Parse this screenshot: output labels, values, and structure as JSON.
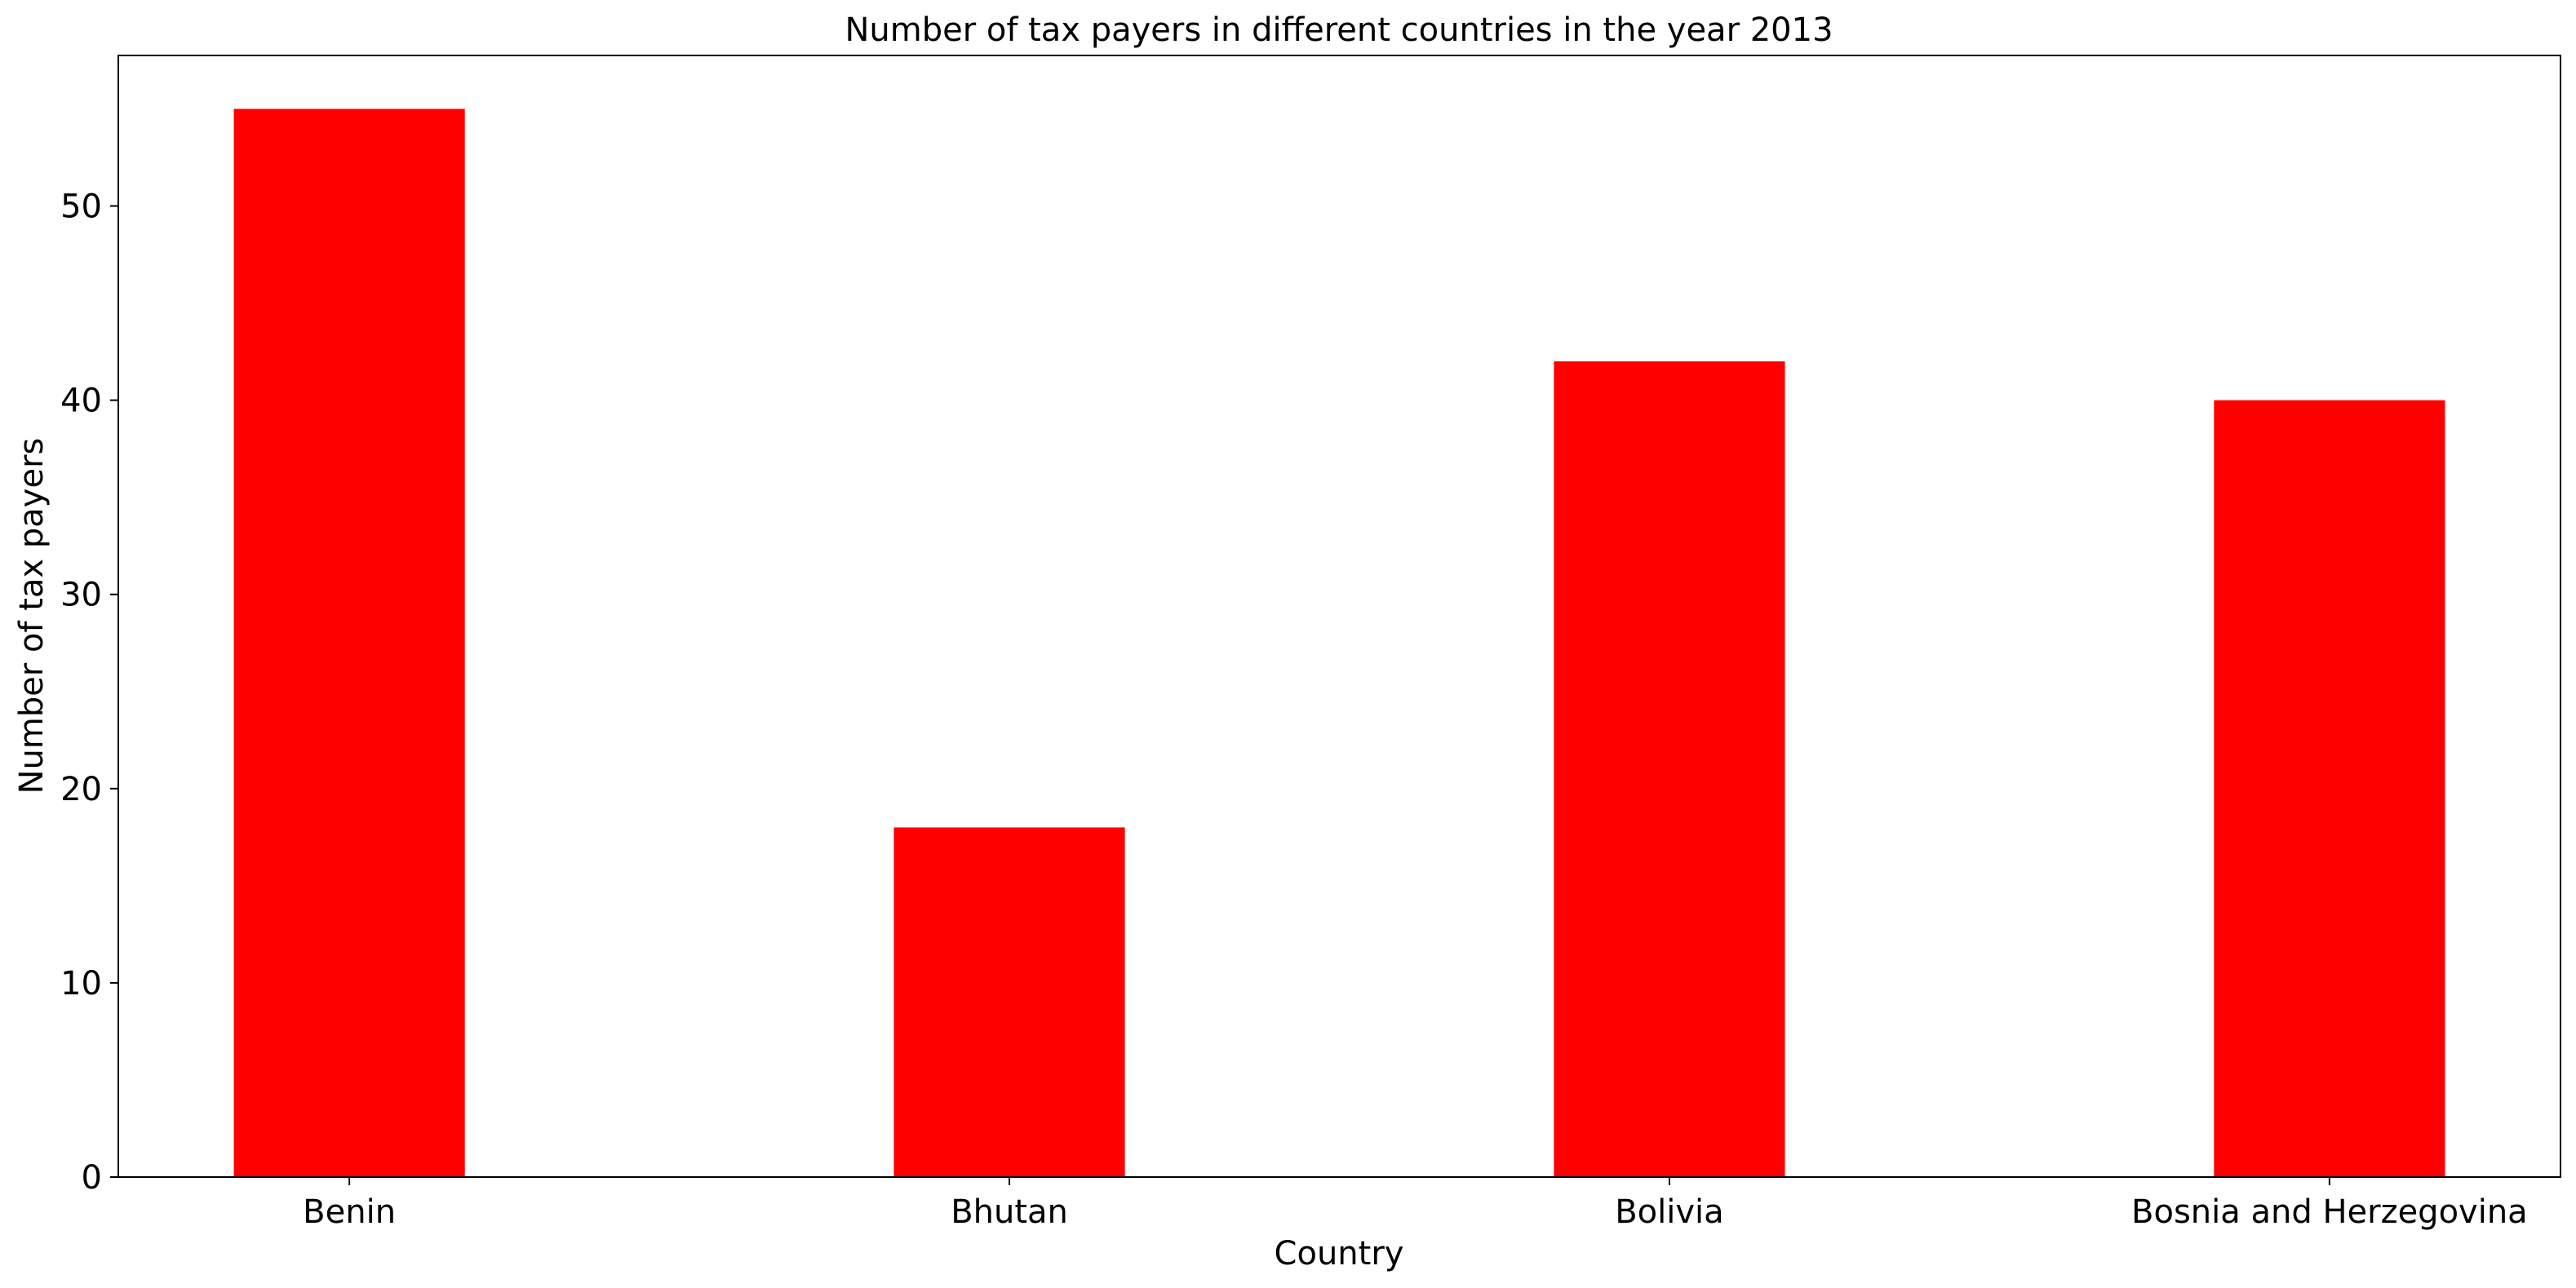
{
  "chart_data": {
    "type": "bar",
    "title": "Number of tax payers in different countries in the year 2013",
    "xlabel": "Country",
    "ylabel": "Number of tax payers",
    "categories": [
      "Benin",
      "Bhutan",
      "Bolivia",
      "Bosnia and Herzegovina"
    ],
    "values": [
      55,
      18,
      42,
      40
    ],
    "ylim": [
      0,
      57.75
    ],
    "yticks": [
      0,
      10,
      20,
      30,
      40,
      50
    ],
    "grid": false,
    "legend": "none",
    "bar_color": "#ff0000"
  }
}
